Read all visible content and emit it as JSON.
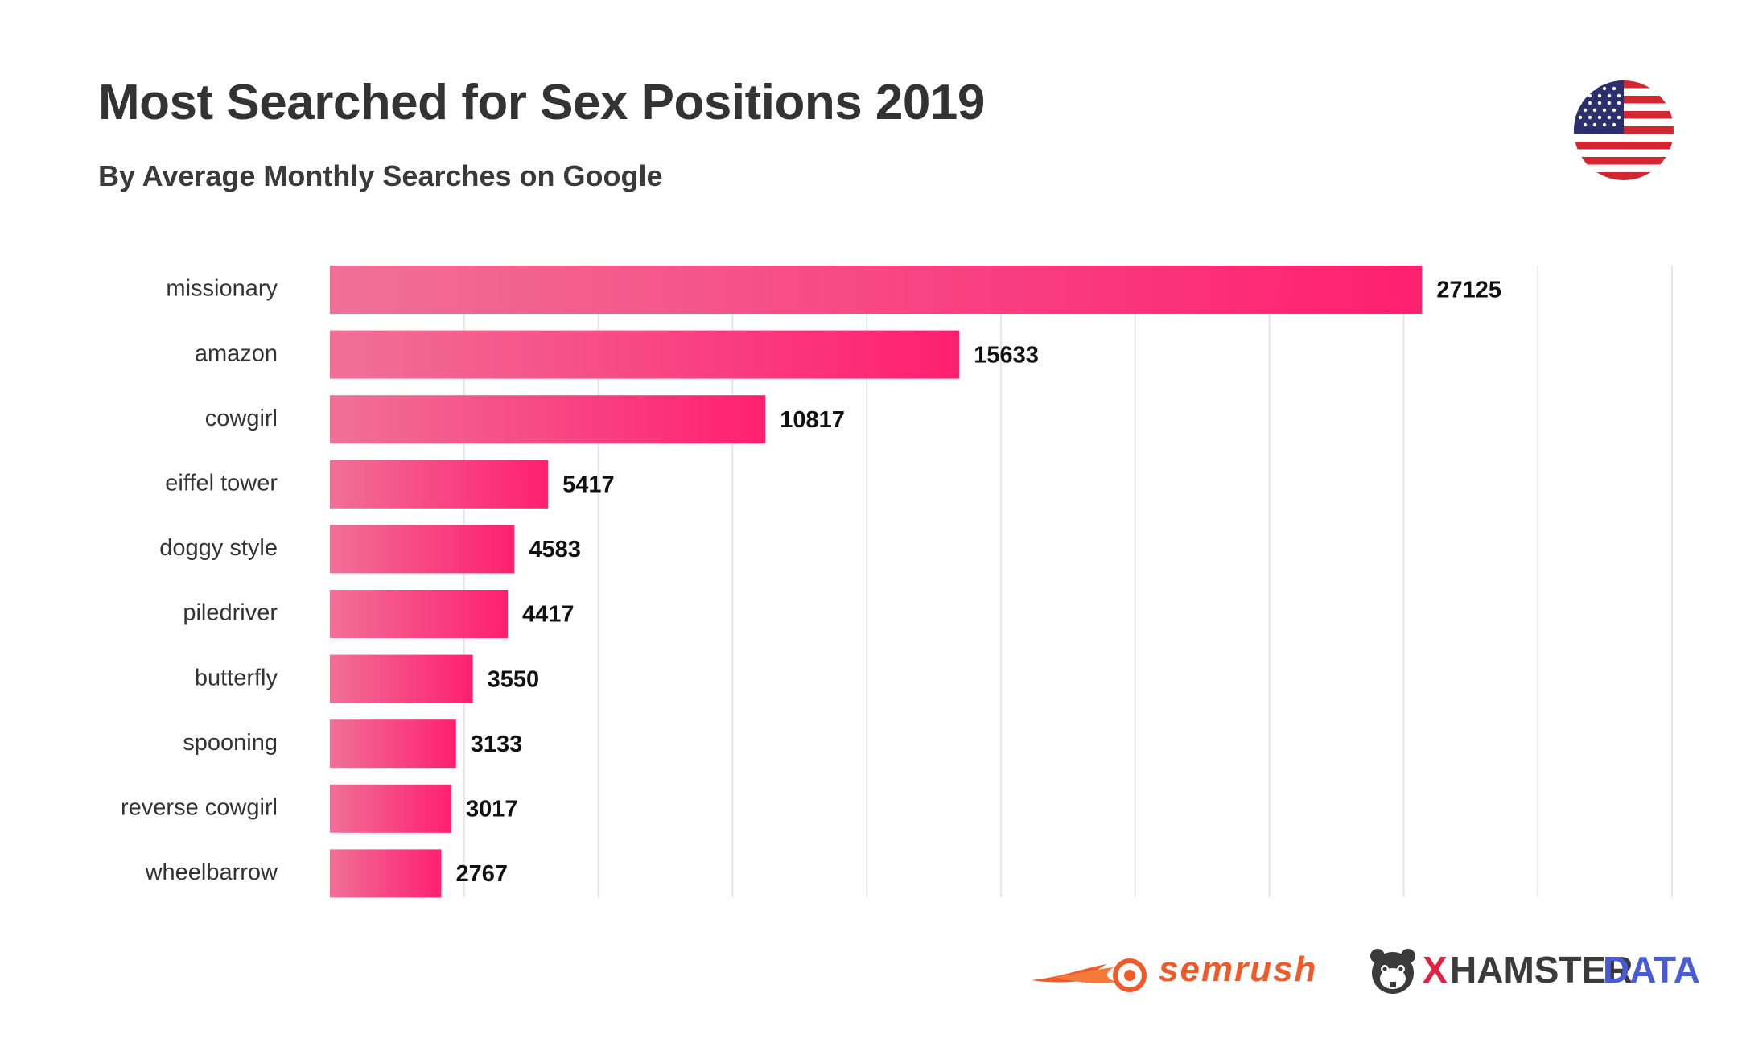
{
  "header": {
    "title": "Most Searched for Sex Positions 2019",
    "subtitle": "By Average Monthly Searches on Google"
  },
  "flag_icon": "us-flag-icon",
  "colors": {
    "bar_start": "#f07098",
    "bar_end": "#ff1f6f",
    "grid": "#e6e6e6",
    "label": "#333333",
    "semrush": "#f05a28",
    "xhamster_red": "#e2203f",
    "xhamster_blue": "#4a5bd6"
  },
  "chart_data": {
    "type": "bar",
    "orientation": "horizontal",
    "title": "Most Searched for Sex Positions 2019",
    "subtitle": "By Average Monthly Searches on Google",
    "categories": [
      "missionary",
      "amazon",
      "cowgirl",
      "eiffel tower",
      "doggy style",
      "piledriver",
      "butterfly",
      "spooning",
      "reverse cowgirl",
      "wheelbarrow"
    ],
    "values": [
      27125,
      15633,
      10817,
      5417,
      4583,
      4417,
      3550,
      3133,
      3017,
      2767
    ],
    "xlim": [
      0,
      33333
    ],
    "grid": true,
    "xlabel": "",
    "ylabel": ""
  },
  "footer": {
    "semrush_label": "semrush",
    "xhamster_x": "X",
    "xhamster_hamster": "HAMSTER",
    "xhamster_data": "DATA"
  }
}
